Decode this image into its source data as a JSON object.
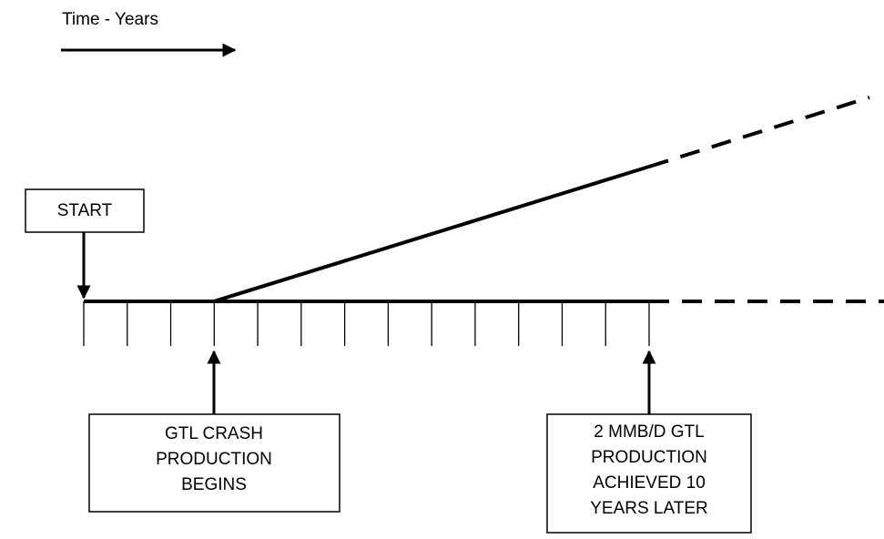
{
  "header": {
    "title": "Time - Years"
  },
  "start": {
    "label": "START"
  },
  "boxes": [
    {
      "lines": [
        "GTL CRASH",
        "PRODUCTION",
        "BEGINS"
      ]
    },
    {
      "lines": [
        "2 MMB/D GTL",
        "PRODUCTION",
        "ACHIEVED 10",
        "YEARS LATER"
      ]
    }
  ]
}
